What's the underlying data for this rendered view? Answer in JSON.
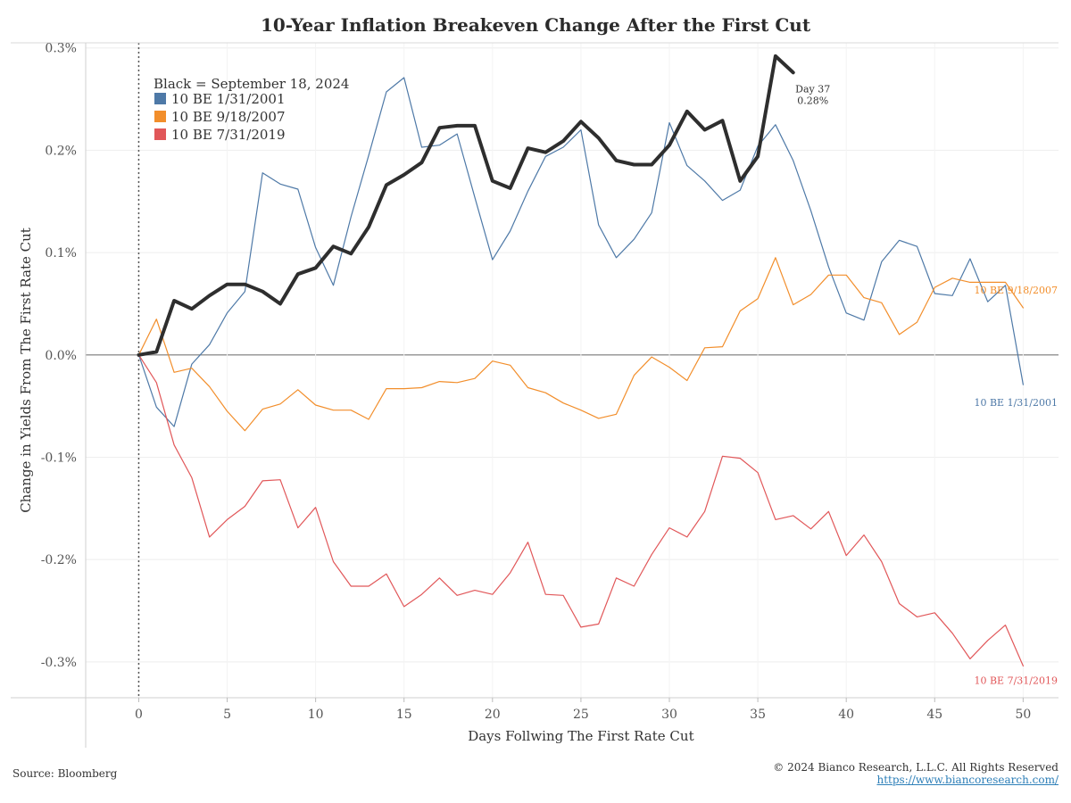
{
  "title": "10-Year Inflation Breakeven Change After the First Cut",
  "footer": {
    "source": "Source: Bloomberg",
    "copyright": "© 2024 Bianco Research, L.L.C. All Rights Reserved",
    "link": "https://www.biancoresearch.com/"
  },
  "chart_data": {
    "type": "line",
    "title": "10-Year Inflation Breakeven Change After the First Cut",
    "xlabel": "Days Follwing The First Rate Cut",
    "ylabel": "Change in Yields From The First Rate Cut",
    "xlim": [
      -3,
      52
    ],
    "ylim": [
      -0.335,
      0.305
    ],
    "x_ticks": [
      0,
      5,
      10,
      15,
      20,
      25,
      30,
      35,
      40,
      45,
      50
    ],
    "y_ticks": [
      {
        "value": 0.3,
        "label": "0.3%"
      },
      {
        "value": 0.2,
        "label": "0.2%"
      },
      {
        "value": 0.1,
        "label": "0.1%"
      },
      {
        "value": 0.0,
        "label": "0.0%"
      },
      {
        "value": -0.1,
        "label": "-0.1%"
      },
      {
        "value": -0.2,
        "label": "-0.2%"
      },
      {
        "value": -0.3,
        "label": "-0.3%"
      }
    ],
    "grid": true,
    "legend_title": "Black = September 18, 2024",
    "legend_position": "top-left",
    "series": [
      {
        "name": "10 BE  1/31/2001",
        "color": "#4e79a7",
        "end_label": "10 BE  1/31/2001",
        "values": [
          0.0,
          -0.051,
          -0.07,
          -0.009,
          0.01,
          0.041,
          0.062,
          0.178,
          0.167,
          0.162,
          0.105,
          0.068,
          0.135,
          0.195,
          0.257,
          0.271,
          0.203,
          0.205,
          0.216,
          0.154,
          0.093,
          0.121,
          0.16,
          0.194,
          0.203,
          0.22,
          0.127,
          0.095,
          0.113,
          0.139,
          0.227,
          0.185,
          0.17,
          0.151,
          0.161,
          0.204,
          0.225,
          0.19,
          0.141,
          0.086,
          0.041,
          0.034,
          0.091,
          0.112,
          0.106,
          0.06,
          0.058,
          0.094,
          0.052,
          0.068,
          -0.029
        ]
      },
      {
        "name": "10 BE  9/18/2007",
        "color": "#f28e2b",
        "end_label": "10 BE  9/18/2007",
        "values": [
          0.0,
          0.035,
          -0.017,
          -0.013,
          -0.031,
          -0.055,
          -0.074,
          -0.053,
          -0.048,
          -0.034,
          -0.049,
          -0.054,
          -0.054,
          -0.063,
          -0.033,
          -0.033,
          -0.032,
          -0.026,
          -0.027,
          -0.023,
          -0.006,
          -0.01,
          -0.032,
          -0.037,
          -0.047,
          -0.054,
          -0.062,
          -0.058,
          -0.02,
          -0.002,
          -0.012,
          -0.025,
          0.007,
          0.008,
          0.043,
          0.055,
          0.095,
          0.049,
          0.059,
          0.078,
          0.078,
          0.056,
          0.051,
          0.02,
          0.032,
          0.066,
          0.075,
          0.071,
          0.071,
          0.071,
          0.046
        ]
      },
      {
        "name": "10 BE  7/31/2019",
        "color": "#e15759",
        "end_label": "10 BE  7/31/2019",
        "values": [
          0.0,
          -0.027,
          -0.088,
          -0.12,
          -0.178,
          -0.161,
          -0.148,
          -0.123,
          -0.122,
          -0.169,
          -0.149,
          -0.202,
          -0.226,
          -0.226,
          -0.214,
          -0.246,
          -0.234,
          -0.218,
          -0.235,
          -0.23,
          -0.234,
          -0.213,
          -0.183,
          -0.234,
          -0.235,
          -0.266,
          -0.263,
          -0.218,
          -0.226,
          -0.195,
          -0.169,
          -0.178,
          -0.153,
          -0.099,
          -0.101,
          -0.115,
          -0.161,
          -0.157,
          -0.17,
          -0.153,
          -0.196,
          -0.176,
          -0.202,
          -0.243,
          -0.256,
          -0.252,
          -0.272,
          -0.297,
          -0.279,
          -0.264,
          -0.304
        ]
      },
      {
        "name": "September 18, 2024",
        "color": "#2e2e2e",
        "values": [
          0.0,
          0.003,
          0.053,
          0.045,
          0.058,
          0.069,
          0.069,
          0.062,
          0.05,
          0.079,
          0.085,
          0.106,
          0.099,
          0.125,
          0.166,
          0.176,
          0.188,
          0.222,
          0.224,
          0.224,
          0.17,
          0.163,
          0.202,
          0.198,
          0.209,
          0.228,
          0.212,
          0.19,
          0.186,
          0.186,
          0.205,
          0.238,
          0.22,
          0.229,
          0.17,
          0.194,
          0.292,
          0.276
        ]
      }
    ],
    "annotation": {
      "day": 37,
      "line1": "Day 37",
      "line2": "0.28%"
    }
  }
}
